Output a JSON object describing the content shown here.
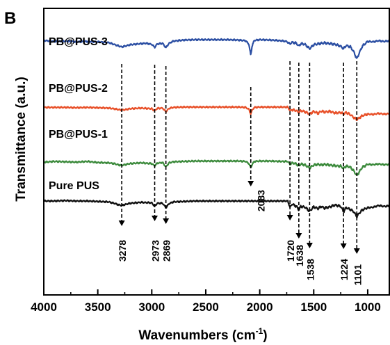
{
  "panel_label": "B",
  "chart_data": {
    "type": "line",
    "title": "",
    "xlabel": "Wavenumbers (cm",
    "xlabel_sup": "-1",
    "xlabel_close": ")",
    "ylabel": "Transmittance (a.u.)",
    "x_reversed": true,
    "xlim": [
      4000,
      800
    ],
    "x_ticks": [
      "4000",
      "3500",
      "3000",
      "2500",
      "2000",
      "1500",
      "1000"
    ],
    "x_tick_values": [
      4000,
      3500,
      3000,
      2500,
      2000,
      1500,
      1000
    ],
    "grid": false,
    "legend": "none",
    "series": [
      {
        "name": "PB@PUS-3",
        "color": "#2c4fa3",
        "points": [
          [
            4000,
            0.96
          ],
          [
            3900,
            0.93
          ],
          [
            3800,
            0.94
          ],
          [
            3700,
            0.92
          ],
          [
            3600,
            0.93
          ],
          [
            3500,
            0.92
          ],
          [
            3400,
            0.9
          ],
          [
            3350,
            0.85
          ],
          [
            3300,
            0.8
          ],
          [
            3278,
            0.78
          ],
          [
            3250,
            0.8
          ],
          [
            3200,
            0.84
          ],
          [
            3100,
            0.87
          ],
          [
            3050,
            0.88
          ],
          [
            3000,
            0.85
          ],
          [
            2973,
            0.77
          ],
          [
            2950,
            0.86
          ],
          [
            2900,
            0.88
          ],
          [
            2869,
            0.76
          ],
          [
            2840,
            0.88
          ],
          [
            2800,
            0.94
          ],
          [
            2700,
            0.97
          ],
          [
            2600,
            0.98
          ],
          [
            2500,
            0.98
          ],
          [
            2400,
            0.98
          ],
          [
            2300,
            0.98
          ],
          [
            2200,
            0.97
          ],
          [
            2130,
            0.95
          ],
          [
            2100,
            0.85
          ],
          [
            2083,
            0.55
          ],
          [
            2070,
            0.82
          ],
          [
            2050,
            0.96
          ],
          [
            2000,
            0.98
          ],
          [
            1900,
            0.97
          ],
          [
            1800,
            0.95
          ],
          [
            1750,
            0.93
          ],
          [
            1720,
            0.86
          ],
          [
            1700,
            0.91
          ],
          [
            1660,
            0.88
          ],
          [
            1638,
            0.8
          ],
          [
            1620,
            0.87
          ],
          [
            1580,
            0.85
          ],
          [
            1538,
            0.73
          ],
          [
            1500,
            0.84
          ],
          [
            1450,
            0.87
          ],
          [
            1400,
            0.89
          ],
          [
            1350,
            0.87
          ],
          [
            1300,
            0.85
          ],
          [
            1250,
            0.8
          ],
          [
            1224,
            0.73
          ],
          [
            1200,
            0.82
          ],
          [
            1160,
            0.78
          ],
          [
            1130,
            0.65
          ],
          [
            1101,
            0.45
          ],
          [
            1080,
            0.6
          ],
          [
            1050,
            0.8
          ],
          [
            1000,
            0.93
          ],
          [
            950,
            0.92
          ],
          [
            900,
            0.95
          ],
          [
            850,
            0.93
          ],
          [
            800,
            0.95
          ]
        ]
      },
      {
        "name": "PB@PUS-2",
        "color": "#e8512a",
        "points": [
          [
            4000,
            0.7
          ],
          [
            3900,
            0.7
          ],
          [
            3800,
            0.7
          ],
          [
            3700,
            0.69
          ],
          [
            3600,
            0.7
          ],
          [
            3500,
            0.69
          ],
          [
            3400,
            0.68
          ],
          [
            3350,
            0.66
          ],
          [
            3300,
            0.63
          ],
          [
            3278,
            0.62
          ],
          [
            3250,
            0.63
          ],
          [
            3200,
            0.66
          ],
          [
            3100,
            0.68
          ],
          [
            3000,
            0.66
          ],
          [
            2973,
            0.6
          ],
          [
            2950,
            0.67
          ],
          [
            2900,
            0.68
          ],
          [
            2869,
            0.57
          ],
          [
            2840,
            0.67
          ],
          [
            2800,
            0.7
          ],
          [
            2700,
            0.71
          ],
          [
            2600,
            0.71
          ],
          [
            2500,
            0.71
          ],
          [
            2400,
            0.71
          ],
          [
            2300,
            0.71
          ],
          [
            2200,
            0.71
          ],
          [
            2130,
            0.7
          ],
          [
            2100,
            0.64
          ],
          [
            2083,
            0.5
          ],
          [
            2070,
            0.62
          ],
          [
            2050,
            0.7
          ],
          [
            2000,
            0.71
          ],
          [
            1900,
            0.71
          ],
          [
            1800,
            0.71
          ],
          [
            1740,
            0.71
          ],
          [
            1720,
            0.6
          ],
          [
            1700,
            0.63
          ],
          [
            1660,
            0.6
          ],
          [
            1638,
            0.55
          ],
          [
            1620,
            0.6
          ],
          [
            1580,
            0.57
          ],
          [
            1538,
            0.5
          ],
          [
            1500,
            0.58
          ],
          [
            1460,
            0.52
          ],
          [
            1430,
            0.59
          ],
          [
            1400,
            0.56
          ],
          [
            1350,
            0.58
          ],
          [
            1300,
            0.53
          ],
          [
            1250,
            0.55
          ],
          [
            1224,
            0.5
          ],
          [
            1200,
            0.55
          ],
          [
            1160,
            0.48
          ],
          [
            1130,
            0.4
          ],
          [
            1101,
            0.33
          ],
          [
            1080,
            0.38
          ],
          [
            1050,
            0.45
          ],
          [
            1000,
            0.5
          ],
          [
            950,
            0.49
          ],
          [
            900,
            0.52
          ],
          [
            850,
            0.5
          ],
          [
            800,
            0.51
          ]
        ]
      },
      {
        "name": "PB@PUS-1",
        "color": "#3d8b3d",
        "points": [
          [
            4000,
            0.44
          ],
          [
            3900,
            0.46
          ],
          [
            3800,
            0.45
          ],
          [
            3700,
            0.44
          ],
          [
            3600,
            0.46
          ],
          [
            3500,
            0.43
          ],
          [
            3400,
            0.42
          ],
          [
            3350,
            0.4
          ],
          [
            3300,
            0.36
          ],
          [
            3278,
            0.35
          ],
          [
            3250,
            0.37
          ],
          [
            3200,
            0.4
          ],
          [
            3100,
            0.42
          ],
          [
            3000,
            0.4
          ],
          [
            2973,
            0.34
          ],
          [
            2950,
            0.41
          ],
          [
            2900,
            0.43
          ],
          [
            2869,
            0.31
          ],
          [
            2840,
            0.42
          ],
          [
            2800,
            0.45
          ],
          [
            2700,
            0.46
          ],
          [
            2600,
            0.47
          ],
          [
            2500,
            0.47
          ],
          [
            2400,
            0.47
          ],
          [
            2300,
            0.47
          ],
          [
            2200,
            0.47
          ],
          [
            2130,
            0.46
          ],
          [
            2100,
            0.4
          ],
          [
            2083,
            0.28
          ],
          [
            2070,
            0.38
          ],
          [
            2050,
            0.46
          ],
          [
            2000,
            0.47
          ],
          [
            1900,
            0.47
          ],
          [
            1800,
            0.46
          ],
          [
            1740,
            0.46
          ],
          [
            1720,
            0.38
          ],
          [
            1700,
            0.42
          ],
          [
            1660,
            0.39
          ],
          [
            1638,
            0.33
          ],
          [
            1620,
            0.39
          ],
          [
            1580,
            0.36
          ],
          [
            1538,
            0.28
          ],
          [
            1500,
            0.36
          ],
          [
            1460,
            0.38
          ],
          [
            1430,
            0.36
          ],
          [
            1400,
            0.38
          ],
          [
            1350,
            0.36
          ],
          [
            1300,
            0.34
          ],
          [
            1250,
            0.33
          ],
          [
            1224,
            0.27
          ],
          [
            1200,
            0.33
          ],
          [
            1160,
            0.3
          ],
          [
            1130,
            0.2
          ],
          [
            1101,
            0.07
          ],
          [
            1080,
            0.16
          ],
          [
            1050,
            0.3
          ],
          [
            1000,
            0.38
          ],
          [
            950,
            0.37
          ],
          [
            900,
            0.39
          ],
          [
            850,
            0.37
          ],
          [
            800,
            0.38
          ]
        ]
      },
      {
        "name": "Pure PUS",
        "color": "#111111",
        "points": [
          [
            4000,
            0.0
          ],
          [
            3900,
            0.0
          ],
          [
            3800,
            0.01
          ],
          [
            3700,
            0.0
          ],
          [
            3600,
            0.0
          ],
          [
            3500,
            -0.01
          ],
          [
            3400,
            -0.02
          ],
          [
            3350,
            -0.05
          ],
          [
            3300,
            -0.09
          ],
          [
            3278,
            -0.1
          ],
          [
            3250,
            -0.08
          ],
          [
            3200,
            -0.05
          ],
          [
            3100,
            -0.03
          ],
          [
            3000,
            -0.04
          ],
          [
            2973,
            -0.12
          ],
          [
            2950,
            -0.05
          ],
          [
            2900,
            -0.05
          ],
          [
            2869,
            -0.15
          ],
          [
            2840,
            -0.06
          ],
          [
            2800,
            -0.02
          ],
          [
            2700,
            -0.01
          ],
          [
            2600,
            0.0
          ],
          [
            2500,
            0.0
          ],
          [
            2400,
            0.0
          ],
          [
            2300,
            0.0
          ],
          [
            2200,
            0.0
          ],
          [
            2100,
            0.0
          ],
          [
            2000,
            0.0
          ],
          [
            1900,
            0.0
          ],
          [
            1800,
            0.0
          ],
          [
            1740,
            0.0
          ],
          [
            1720,
            -0.14
          ],
          [
            1700,
            -0.07
          ],
          [
            1660,
            -0.12
          ],
          [
            1638,
            -0.2
          ],
          [
            1620,
            -0.12
          ],
          [
            1580,
            -0.14
          ],
          [
            1538,
            -0.23
          ],
          [
            1500,
            -0.13
          ],
          [
            1460,
            -0.17
          ],
          [
            1430,
            -0.12
          ],
          [
            1400,
            -0.16
          ],
          [
            1350,
            -0.13
          ],
          [
            1300,
            -0.09
          ],
          [
            1250,
            -0.12
          ],
          [
            1224,
            -0.24
          ],
          [
            1200,
            -0.15
          ],
          [
            1160,
            -0.19
          ],
          [
            1130,
            -0.24
          ],
          [
            1101,
            -0.35
          ],
          [
            1080,
            -0.28
          ],
          [
            1050,
            -0.2
          ],
          [
            1000,
            -0.15
          ],
          [
            950,
            -0.14
          ],
          [
            900,
            -0.1
          ],
          [
            850,
            -0.12
          ],
          [
            800,
            -0.11
          ]
        ]
      }
    ],
    "annotations": [
      {
        "label": "3278",
        "x": 3278
      },
      {
        "label": "2973",
        "x": 2973
      },
      {
        "label": "2869",
        "x": 2869
      },
      {
        "label": "2083",
        "x": 2083
      },
      {
        "label": "1720",
        "x": 1720
      },
      {
        "label": "1638",
        "x": 1638
      },
      {
        "label": "1538",
        "x": 1538
      },
      {
        "label": "1224",
        "x": 1224
      },
      {
        "label": "1101",
        "x": 1101
      }
    ]
  }
}
